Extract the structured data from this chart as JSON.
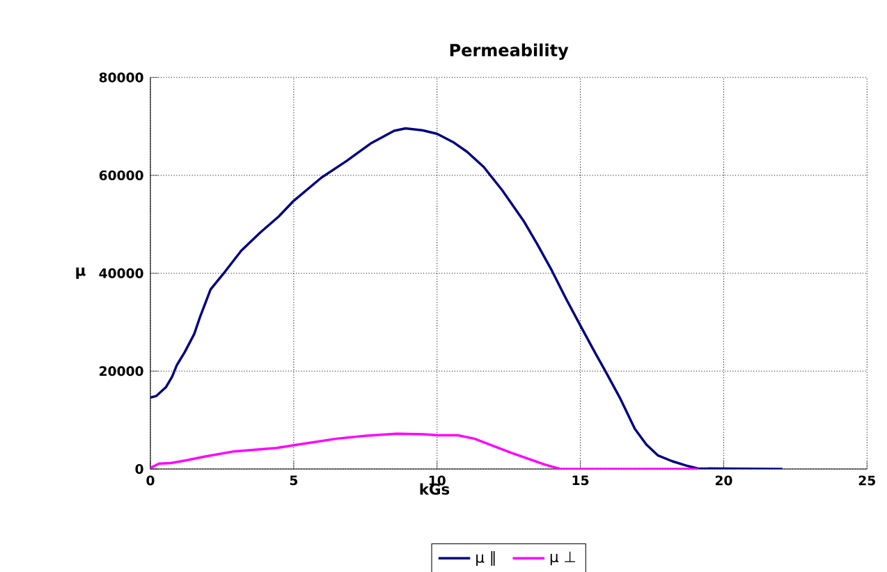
{
  "chart_data": {
    "type": "line",
    "title": "Permeability",
    "xlabel": "kGs",
    "ylabel": "μ",
    "xlim": [
      0,
      25
    ],
    "xticks": [
      0,
      5,
      10,
      15,
      20,
      25
    ],
    "ylim": [
      0,
      80000
    ],
    "yticks": [
      0,
      20000,
      40000,
      60000,
      80000
    ],
    "grid": true,
    "legend": "bottom",
    "marker": "none",
    "line_style": "solid",
    "series": [
      {
        "name": "μ ∥",
        "color": "#000080",
        "x": [
          0,
          0.2,
          0.54,
          0.76,
          0.92,
          1.2,
          1.53,
          1.74,
          2.1,
          2.6,
          3.17,
          3.83,
          4.48,
          5.0,
          5.96,
          6.86,
          7.68,
          8.5,
          8.9,
          9.49,
          10.0,
          10.56,
          11.05,
          11.63,
          12.28,
          13.02,
          13.5,
          14.0,
          14.5,
          15.0,
          15.5,
          15.9,
          16.4,
          16.9,
          17.3,
          17.7,
          18.2,
          18.7,
          19.1,
          22.05
        ],
        "values": [
          14600,
          14900,
          16700,
          18900,
          21200,
          23900,
          27600,
          31200,
          36700,
          40300,
          44600,
          48300,
          51600,
          54800,
          59500,
          63000,
          66500,
          69100,
          69600,
          69200,
          68500,
          66800,
          64800,
          61700,
          56900,
          50700,
          45900,
          40600,
          34800,
          29300,
          23900,
          19700,
          14300,
          8200,
          5000,
          2800,
          1600,
          700,
          100,
          0
        ]
      },
      {
        "name": "μ ⊥",
        "color": "#ff00ff",
        "x": [
          0,
          0.3,
          0.7,
          1.28,
          1.94,
          2.92,
          4.4,
          5.05,
          6.5,
          7.5,
          8.6,
          9.5,
          10.05,
          10.72,
          11.3,
          12.6,
          13.76,
          14.3,
          19.1
        ],
        "values": [
          200,
          1100,
          1200,
          1800,
          2600,
          3600,
          4300,
          4900,
          6200,
          6800,
          7200,
          7100,
          6900,
          6900,
          6200,
          3300,
          900,
          0,
          0
        ]
      }
    ]
  }
}
